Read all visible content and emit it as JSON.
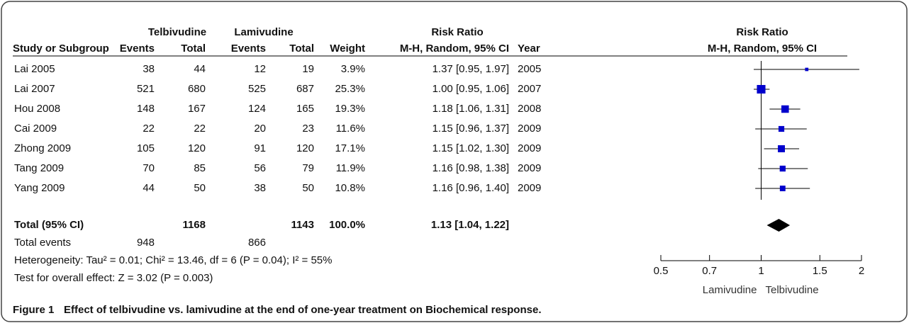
{
  "chart_data": {
    "type": "forest",
    "caption_label": "Figure 1",
    "caption": "Effect of telbivudine vs. lamivudine at the end of one-year treatment on Biochemical response.",
    "group_headers": {
      "treatment": "Telbivudine",
      "control": "Lamivudine",
      "risk_ratio": "Risk Ratio",
      "plot": "Risk Ratio"
    },
    "column_headers": {
      "study": "Study or Subgroup",
      "events_t": "Events",
      "total_t": "Total",
      "events_c": "Events",
      "total_c": "Total",
      "weight": "Weight",
      "ci": "M-H, Random, 95% CI",
      "year": "Year",
      "plot": "M-H, Random, 95% CI"
    },
    "studies": [
      {
        "name": "Lai 2005",
        "events_t": 38,
        "total_t": 44,
        "events_c": 12,
        "total_c": 19,
        "weight": 3.9,
        "weight_label": "3.9%",
        "rr": 1.37,
        "ci_low": 0.95,
        "ci_high": 1.97,
        "ci_label": "1.37 [0.95, 1.97]",
        "year": 2005
      },
      {
        "name": "Lai 2007",
        "events_t": 521,
        "total_t": 680,
        "events_c": 525,
        "total_c": 687,
        "weight": 25.3,
        "weight_label": "25.3%",
        "rr": 1.0,
        "ci_low": 0.95,
        "ci_high": 1.06,
        "ci_label": "1.00 [0.95, 1.06]",
        "year": 2007
      },
      {
        "name": "Hou 2008",
        "events_t": 148,
        "total_t": 167,
        "events_c": 124,
        "total_c": 165,
        "weight": 19.3,
        "weight_label": "19.3%",
        "rr": 1.18,
        "ci_low": 1.06,
        "ci_high": 1.31,
        "ci_label": "1.18 [1.06, 1.31]",
        "year": 2008
      },
      {
        "name": "Cai 2009",
        "events_t": 22,
        "total_t": 22,
        "events_c": 20,
        "total_c": 23,
        "weight": 11.6,
        "weight_label": "11.6%",
        "rr": 1.15,
        "ci_low": 0.96,
        "ci_high": 1.37,
        "ci_label": "1.15 [0.96, 1.37]",
        "year": 2009
      },
      {
        "name": "Zhong 2009",
        "events_t": 105,
        "total_t": 120,
        "events_c": 91,
        "total_c": 120,
        "weight": 17.1,
        "weight_label": "17.1%",
        "rr": 1.15,
        "ci_low": 1.02,
        "ci_high": 1.3,
        "ci_label": "1.15 [1.02, 1.30]",
        "year": 2009
      },
      {
        "name": "Tang 2009",
        "events_t": 70,
        "total_t": 85,
        "events_c": 56,
        "total_c": 79,
        "weight": 11.9,
        "weight_label": "11.9%",
        "rr": 1.16,
        "ci_low": 0.98,
        "ci_high": 1.38,
        "ci_label": "1.16 [0.98, 1.38]",
        "year": 2009
      },
      {
        "name": "Yang 2009",
        "events_t": 44,
        "total_t": 50,
        "events_c": 38,
        "total_c": 50,
        "weight": 10.8,
        "weight_label": "10.8%",
        "rr": 1.16,
        "ci_low": 0.96,
        "ci_high": 1.4,
        "ci_label": "1.16 [0.96, 1.40]",
        "year": 2009
      }
    ],
    "total": {
      "name": "Total (95% CI)",
      "total_t": 1168,
      "total_c": 1143,
      "weight": 100.0,
      "weight_label": "100.0%",
      "rr": 1.13,
      "ci_low": 1.04,
      "ci_high": 1.22,
      "ci_label": "1.13 [1.04, 1.22]"
    },
    "total_events": {
      "name": "Total events",
      "events_t": 948,
      "events_c": 866
    },
    "heterogeneity": "Heterogeneity: Tau² = 0.01; Chi² = 13.46, df = 6 (P = 0.04); I² = 55%",
    "overall_effect": "Test for overall effect: Z = 3.02 (P = 0.003)",
    "xscale": "log",
    "xlim": [
      0.5,
      2
    ],
    "xticks": [
      0.5,
      0.7,
      1,
      1.5,
      2
    ],
    "reference_line": 1,
    "favours_left": "Lamivudine",
    "favours_right": "Telbivudine",
    "square_color": "#0000cc",
    "diamond_color": "#000000"
  }
}
